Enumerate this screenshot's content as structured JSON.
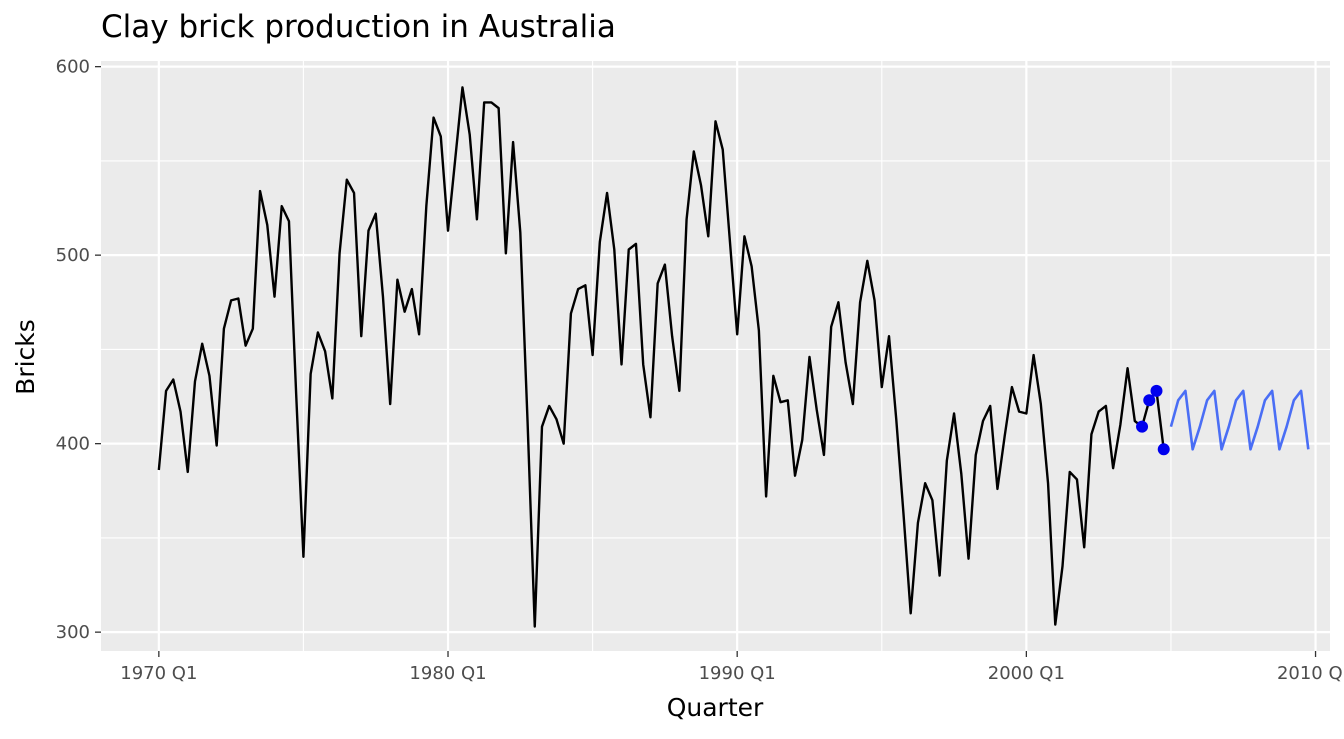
{
  "chart_data": {
    "type": "line",
    "title": "Clay brick production in Australia",
    "xlabel": "Quarter",
    "ylabel": "Bricks",
    "x_ticks": [
      {
        "year": 1970,
        "label": "1970 Q1"
      },
      {
        "year": 1980,
        "label": "1980 Q1"
      },
      {
        "year": 1990,
        "label": "1990 Q1"
      },
      {
        "year": 2000,
        "label": "2000 Q1"
      },
      {
        "year": 2010,
        "label": "2010 Q1"
      }
    ],
    "y_ticks": [
      300,
      400,
      500,
      600
    ],
    "xlim": [
      "1968 Q1",
      "2010 Q3"
    ],
    "ylim": [
      290,
      603
    ],
    "grid": true,
    "legend": "none",
    "series": [
      {
        "role": "observed",
        "color": "#000000",
        "start": "1970 Q1",
        "frequency": "quarterly",
        "values": [
          386,
          428,
          434,
          417,
          385,
          433,
          453,
          436,
          399,
          461,
          476,
          477,
          452,
          461,
          534,
          516,
          478,
          526,
          518,
          426,
          340,
          437,
          459,
          449,
          424,
          501,
          540,
          533,
          457,
          513,
          522,
          478,
          421,
          487,
          470,
          482,
          458,
          526,
          573,
          563,
          513,
          551,
          589,
          564,
          519,
          581,
          581,
          578,
          501,
          560,
          512,
          412,
          303,
          409,
          420,
          413,
          400,
          469,
          482,
          484,
          447,
          507,
          533,
          503,
          442,
          503,
          506,
          442,
          414,
          485,
          495,
          457,
          428,
          519,
          555,
          537,
          510,
          571,
          556,
          507,
          458,
          510,
          494,
          460,
          372,
          436,
          422,
          423,
          383,
          402,
          446,
          418,
          394,
          462,
          475,
          443,
          421,
          475,
          497,
          476,
          430,
          457,
          413,
          363,
          310,
          358,
          379,
          370,
          330,
          391,
          416,
          384,
          339,
          394,
          412,
          420,
          376,
          404,
          430,
          417,
          416,
          447,
          421,
          379,
          304,
          335,
          385,
          381,
          345,
          405,
          417,
          420,
          387,
          410,
          440,
          412,
          409,
          423,
          428,
          397
        ]
      },
      {
        "role": "highlighted",
        "color": "#0000ee",
        "start": "2004 Q1",
        "frequency": "quarterly",
        "values": [
          409,
          423,
          428,
          397
        ]
      },
      {
        "role": "forecast",
        "color": "#4a6ef5",
        "start": "2005 Q1",
        "frequency": "quarterly",
        "values": [
          409,
          423,
          428,
          397,
          409,
          423,
          428,
          397,
          409,
          423,
          428,
          397,
          409,
          423,
          428,
          397,
          409,
          423,
          428,
          397
        ]
      }
    ]
  },
  "colors": {
    "panel": "#ebebeb",
    "grid": "#ffffff",
    "tick_text": "#4d4d4d"
  }
}
